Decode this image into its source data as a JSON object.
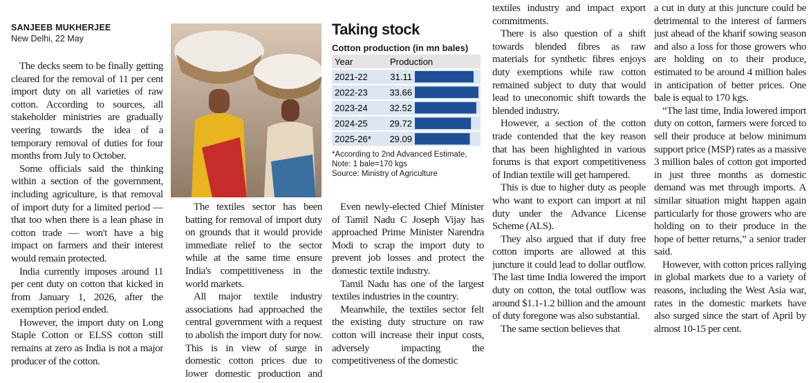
{
  "byline": {
    "author": "SANJEEB MUKHERJEE",
    "dateline": "New Delhi, 22 May"
  },
  "columns": [
    {
      "paragraphs": [
        "The decks seem to be finally getting cleared for the removal of 11 per cent import duty on all varieties of raw cotton. According to sources, all stakeholder ministries are gradually veering towards the idea of a temporary removal of duties for four months from July to October.",
        "Some officials said the thinking within a section of the government, including agriculture, is that removal of import duty for a limited period — that too when there is a lean phase in cotton trade — won't have a big impact on farmers and their interest would remain protected.",
        "India currently imposes around 11 per cent duty on cotton that kicked in from January 1, 2026, after the exemption period ended.",
        "However, the import duty on Long Staple Cotton or ELSS cotton still remains at zero as India is not a major producer of the cotton."
      ]
    },
    {
      "paragraphs": [
        "The textiles sector has been batting for removal of import duty on grounds that it would provide immediate relief to the sector while at the same time ensure India's competitiveness in the world markets.",
        "All major textile industry associations had approached the central government with a request to abolish the import duty for now. This is in view of surge in domestic cotton prices due to lower domestic production and also current West Asia crisis."
      ]
    },
    {
      "paragraphs": [
        "Even newly-elected Chief Minister of Tamil Nadu C Joseph Vijay has approached Prime Minister Narendra Modi to scrap the import duty to prevent job losses and protect the domestic textile industry.",
        "Tamil Nadu has one of the largest textiles industries in the country.",
        "Meanwhile, the textiles sector felt the existing duty structure on raw cotton will increase their input costs, adversely impacting the competitiveness of the domestic"
      ]
    },
    {
      "paragraphs": [
        "textiles industry and impact export commitments.",
        "There is also question of a shift towards blended fibres as raw materials for synthetic fibres enjoys duty exemptions while raw cotton remained subject to duty that would lead to uneconomic shift towards the blended industry.",
        "However, a section of the cotton trade contended that the key reason that has been highlighted in various forums is that export competitiveness of Indian textile will get hampered.",
        "This is due to higher duty as people who want to export can import at nil duty under the Advance License Scheme (ALS).",
        "They also argued that if duty free cotton imports are allowed at this juncture it could lead to dollar outflow. The last time India lowered the import duty on cotton, the total outflow was around $1.1-1.2 billion and the amount of duty foregone was also substantial.",
        "The same section believes that"
      ]
    },
    {
      "paragraphs": [
        "a cut in duty at this juncture could be detrimental to the interest of farmers just ahead of the kharif sowing season and also a loss for those growers who are holding on to their produce, estimated to be around 4 million bales in anticipation of better prices. One bale is equal to 170 kgs.",
        "“The last time, India lowered import duty on cotton, farmers were forced to sell their produce at below minimum support price (MSP) rates as a massive 3 million bales of cotton got imported in just three months as domestic demand was met through imports. A similar situation might happen again particularly for those growers who are holding on to their produce in the hope of better returns,” a senior trader said.",
        "However, with cotton prices rallying in global markets due to a variety of reasons, including the West Asia war, rates in the domestic markets have also surged since the start of April by almost 10-15 per cent."
      ]
    }
  ],
  "chart": {
    "type": "bar",
    "title": "Taking stock",
    "subtitle": "Cotton production (in mn bales)",
    "headers": [
      "Year",
      "Production"
    ],
    "categories": [
      "2021-22",
      "2022-23",
      "2023-24",
      "2024-25",
      "2025-26*"
    ],
    "values": [
      31.11,
      33.66,
      32.52,
      29.72,
      29.09
    ],
    "color": "#1f4e96",
    "notes": [
      "*According to 2nd Advanced Estimate, Note: 1 bale=170 kgs",
      "Source: Ministry of Agriculture"
    ]
  }
}
